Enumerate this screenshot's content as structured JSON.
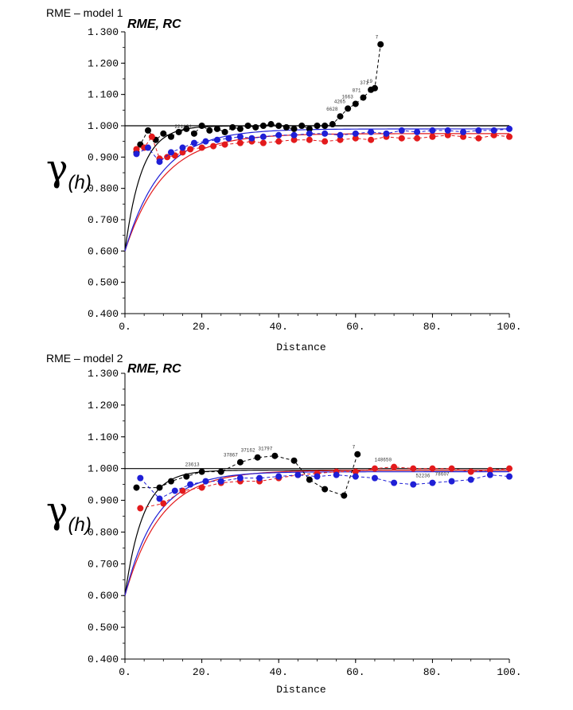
{
  "colors": {
    "black": "#000000",
    "red": "#e31a1c",
    "blue": "#1f1fd6"
  },
  "chart_data": [
    {
      "type": "line",
      "panel_label": "RME – model 1",
      "title": "RME, RC",
      "ylabel_symbol": "γ",
      "ylabel_sub": "(h)",
      "xlabel": "Distance",
      "xlim": [
        0,
        100
      ],
      "ylim": [
        0.4,
        1.3
      ],
      "x_ticks": [
        "0.",
        "20.",
        "40.",
        "60.",
        "80.",
        "100."
      ],
      "y_ticks": [
        "0.400",
        "0.500",
        "0.600",
        "0.700",
        "0.800",
        "0.900",
        "1.000",
        "1.100",
        "1.200",
        "1.300"
      ],
      "reference_line": 1.0,
      "series": [
        {
          "name": "black-experimental",
          "color": "black",
          "x": [
            3,
            4,
            6,
            8,
            10,
            12,
            14,
            16,
            18,
            20,
            22,
            24,
            26,
            28,
            30,
            32,
            34,
            36,
            38,
            40,
            42,
            44,
            46,
            48,
            50,
            52,
            54,
            56,
            58,
            60,
            62,
            64,
            65,
            66.5
          ],
          "y": [
            0.915,
            0.94,
            0.985,
            0.955,
            0.975,
            0.965,
            0.98,
            0.99,
            0.975,
            1.0,
            0.985,
            0.99,
            0.98,
            0.995,
            0.99,
            1.0,
            0.995,
            1.0,
            1.005,
            1.0,
            0.995,
            0.99,
            1.0,
            0.99,
            1.0,
            1.0,
            1.005,
            1.03,
            1.055,
            1.07,
            1.09,
            1.115,
            1.12,
            1.26
          ],
          "labels": [
            "",
            "",
            "",
            "",
            "",
            "",
            "",
            "",
            "221121",
            "",
            "",
            "",
            "",
            "",
            "",
            "",
            "",
            "",
            "",
            "",
            "",
            "",
            "",
            "",
            "",
            "",
            "",
            "6628",
            "4265",
            "1663",
            "871",
            "371",
            "19",
            "7"
          ]
        },
        {
          "name": "red-experimental",
          "color": "red",
          "x": [
            3,
            5,
            7,
            9,
            11,
            13,
            15,
            17,
            20,
            23,
            26,
            30,
            33,
            36,
            40,
            44,
            48,
            52,
            56,
            60,
            64,
            68,
            72,
            76,
            80,
            84,
            88,
            92,
            96,
            100
          ],
          "y": [
            0.925,
            0.93,
            0.965,
            0.895,
            0.9,
            0.905,
            0.915,
            0.925,
            0.93,
            0.935,
            0.94,
            0.945,
            0.95,
            0.945,
            0.95,
            0.955,
            0.955,
            0.95,
            0.955,
            0.96,
            0.955,
            0.965,
            0.96,
            0.96,
            0.965,
            0.97,
            0.965,
            0.96,
            0.97,
            0.965
          ]
        },
        {
          "name": "blue-experimental",
          "color": "blue",
          "x": [
            3,
            6,
            9,
            12,
            15,
            18,
            21,
            24,
            27,
            30,
            33,
            36,
            40,
            44,
            48,
            52,
            56,
            60,
            64,
            68,
            72,
            76,
            80,
            84,
            88,
            92,
            96,
            100
          ],
          "y": [
            0.91,
            0.93,
            0.885,
            0.915,
            0.93,
            0.945,
            0.95,
            0.955,
            0.96,
            0.965,
            0.96,
            0.965,
            0.97,
            0.97,
            0.975,
            0.975,
            0.97,
            0.975,
            0.98,
            0.975,
            0.985,
            0.98,
            0.985,
            0.985,
            0.98,
            0.985,
            0.985,
            0.99
          ]
        }
      ],
      "models": [
        {
          "name": "black-model",
          "color": "black",
          "nugget": 0.6,
          "sill": 1.0,
          "range": 13
        },
        {
          "name": "red-model",
          "color": "red",
          "nugget": 0.6,
          "sill": 0.975,
          "range": 30
        },
        {
          "name": "blue-model",
          "color": "blue",
          "nugget": 0.6,
          "sill": 0.99,
          "range": 28
        }
      ]
    },
    {
      "type": "line",
      "panel_label": "RME – model 2",
      "title": "RME, RC",
      "ylabel_symbol": "γ",
      "ylabel_sub": "(h)",
      "xlabel": "Distance",
      "xlim": [
        0,
        100
      ],
      "ylim": [
        0.4,
        1.3
      ],
      "x_ticks": [
        "0.",
        "20.",
        "40.",
        "60.",
        "80.",
        "100."
      ],
      "y_ticks": [
        "0.400",
        "0.500",
        "0.600",
        "0.700",
        "0.800",
        "0.900",
        "1.000",
        "1.100",
        "1.200",
        "1.300"
      ],
      "reference_line": 1.0,
      "series": [
        {
          "name": "black-experimental",
          "color": "black",
          "x": [
            3,
            9,
            12,
            16,
            20,
            25,
            30,
            34.5,
            39,
            44,
            48,
            52,
            57,
            60.5
          ],
          "y": [
            0.94,
            0.94,
            0.96,
            0.975,
            0.99,
            0.99,
            1.02,
            1.035,
            1.04,
            1.025,
            0.965,
            0.935,
            0.915,
            1.045
          ],
          "labels": [
            "",
            "",
            "",
            "",
            "23613",
            "",
            "37867",
            "37162",
            "31797",
            "",
            "",
            "",
            "",
            "7"
          ]
        },
        {
          "name": "red-experimental",
          "color": "red",
          "x": [
            4,
            10,
            15,
            20,
            25,
            30,
            35,
            40,
            45,
            50,
            55,
            60,
            65,
            70,
            75,
            80,
            85,
            90,
            95,
            100
          ],
          "y": [
            0.875,
            0.89,
            0.93,
            0.94,
            0.955,
            0.96,
            0.96,
            0.97,
            0.98,
            0.985,
            0.99,
            0.99,
            1.0,
            1.005,
            1.0,
            1.0,
            1.0,
            0.99,
            0.995,
            1.0
          ],
          "labels": [
            "",
            "",
            "",
            "",
            "",
            "",
            "",
            "",
            "",
            "",
            "",
            "",
            "",
            "148650",
            "",
            "",
            "",
            "",
            "",
            ""
          ]
        },
        {
          "name": "blue-experimental",
          "color": "blue",
          "x": [
            4,
            9,
            13,
            17,
            21,
            25,
            30,
            35,
            40,
            45,
            50,
            55,
            60,
            65,
            70,
            75,
            80,
            85,
            90,
            95,
            100
          ],
          "y": [
            0.97,
            0.905,
            0.93,
            0.95,
            0.96,
            0.96,
            0.97,
            0.97,
            0.975,
            0.98,
            0.975,
            0.98,
            0.975,
            0.97,
            0.955,
            0.95,
            0.955,
            0.96,
            0.965,
            0.98,
            0.975
          ],
          "labels": [
            "",
            "",
            "",
            "",
            "",
            "",
            "",
            "",
            "",
            "",
            "",
            "",
            "",
            "",
            "",
            "",
            "52236",
            "78607",
            "",
            "",
            ""
          ]
        }
      ],
      "models": [
        {
          "name": "black-model",
          "color": "black",
          "nugget": 0.6,
          "sill": 0.995,
          "range": 14
        },
        {
          "name": "red-model",
          "color": "red",
          "nugget": 0.6,
          "sill": 0.995,
          "range": 28
        },
        {
          "name": "blue-model",
          "color": "blue",
          "nugget": 0.6,
          "sill": 0.99,
          "range": 24
        }
      ]
    }
  ]
}
